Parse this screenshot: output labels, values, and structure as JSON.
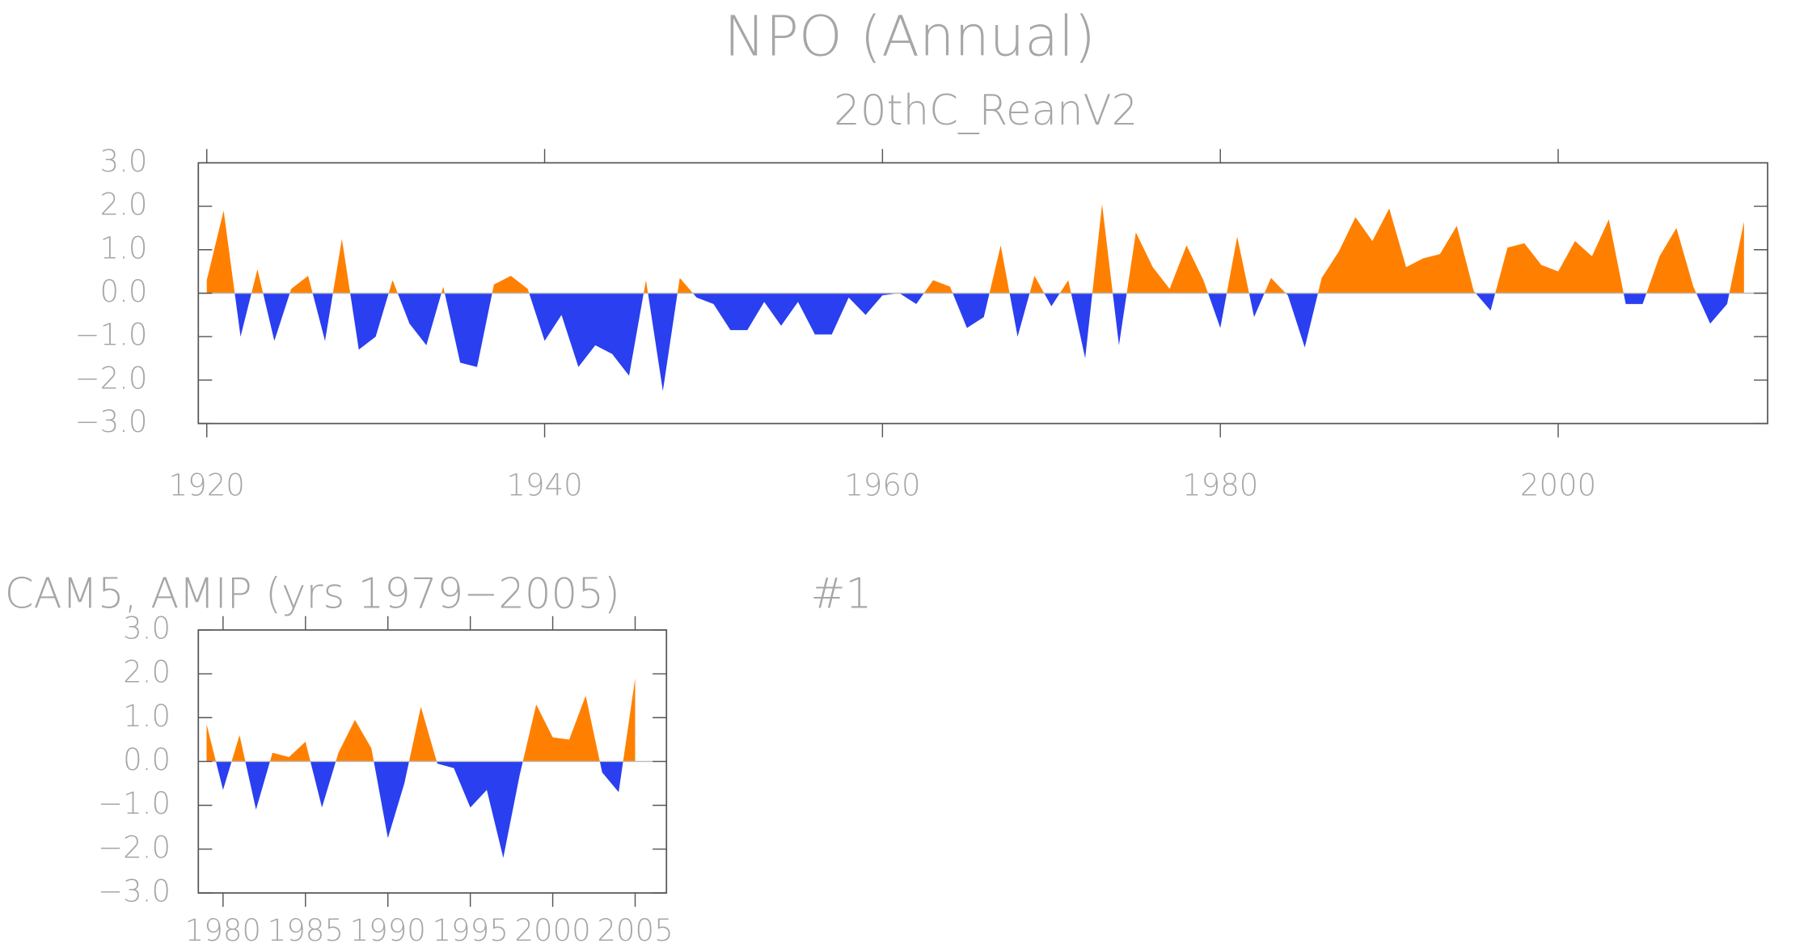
{
  "chart_data": [
    {
      "type": "area",
      "title": "NPO (Annual)",
      "subtitle": "20thC_ReanV2",
      "x": [
        1920,
        1921,
        1922,
        1923,
        1924,
        1925,
        1926,
        1927,
        1928,
        1929,
        1930,
        1931,
        1932,
        1933,
        1934,
        1935,
        1936,
        1937,
        1938,
        1939,
        1940,
        1941,
        1942,
        1943,
        1944,
        1945,
        1946,
        1947,
        1948,
        1949,
        1950,
        1951,
        1952,
        1953,
        1954,
        1955,
        1956,
        1957,
        1958,
        1959,
        1960,
        1961,
        1962,
        1963,
        1964,
        1965,
        1966,
        1967,
        1968,
        1969,
        1970,
        1971,
        1972,
        1973,
        1974,
        1975,
        1976,
        1977,
        1978,
        1979,
        1980,
        1981,
        1982,
        1983,
        1984,
        1985,
        1986,
        1987,
        1988,
        1989,
        1990,
        1991,
        1992,
        1993,
        1994,
        1995,
        1996,
        1997,
        1998,
        1999,
        2000,
        2001,
        2002,
        2003,
        2004,
        2005,
        2006,
        2007,
        2008,
        2009,
        2010,
        2011
      ],
      "values": [
        0.3,
        1.9,
        -1.0,
        0.55,
        -1.1,
        0.1,
        0.4,
        -1.1,
        1.25,
        -1.3,
        -1.0,
        0.3,
        -0.7,
        -1.2,
        0.15,
        -1.6,
        -1.7,
        0.2,
        0.4,
        0.1,
        -1.1,
        -0.5,
        -1.7,
        -1.2,
        -1.4,
        -1.9,
        0.3,
        -2.25,
        0.35,
        -0.1,
        -0.25,
        -0.85,
        -0.85,
        -0.2,
        -0.75,
        -0.2,
        -0.95,
        -0.95,
        -0.1,
        -0.5,
        -0.05,
        0.0,
        -0.25,
        0.3,
        0.15,
        -0.8,
        -0.55,
        1.1,
        -1.0,
        0.4,
        -0.3,
        0.3,
        -1.5,
        2.05,
        -1.2,
        1.4,
        0.6,
        0.1,
        1.1,
        0.3,
        -0.8,
        1.3,
        -0.55,
        0.35,
        -0.05,
        -1.25,
        0.35,
        0.95,
        1.75,
        1.2,
        1.95,
        0.6,
        0.8,
        0.9,
        1.55,
        0.05,
        -0.4,
        1.05,
        1.15,
        0.65,
        0.5,
        1.2,
        0.85,
        1.7,
        -0.25,
        -0.25,
        0.85,
        1.5,
        0.15,
        -0.7,
        -0.25,
        1.65
      ],
      "pos_color": "#ff8000",
      "neg_color": "#2a3ff0",
      "xlim": [
        1919.5,
        2012.4
      ],
      "ylim": [
        -3,
        3
      ],
      "xticks": [
        1920,
        1940,
        1960,
        1980,
        2000
      ],
      "yticks": [
        {
          "value": 3,
          "label": "3.0"
        },
        {
          "value": 2,
          "label": "2.0"
        },
        {
          "value": 1,
          "label": "1.0"
        },
        {
          "value": 0,
          "label": "0.0"
        },
        {
          "value": -1,
          "label": "−1.0"
        },
        {
          "value": -2,
          "label": "−2.0"
        },
        {
          "value": -3,
          "label": "−3.0"
        }
      ]
    },
    {
      "type": "area",
      "title": "CAM5, AMIP (yrs 1979−2005)",
      "annotation": "#1",
      "x": [
        1979,
        1980,
        1981,
        1982,
        1983,
        1984,
        1985,
        1986,
        1987,
        1988,
        1989,
        1990,
        1991,
        1992,
        1993,
        1994,
        1995,
        1996,
        1997,
        1998,
        1999,
        2000,
        2001,
        2002,
        2003,
        2004,
        2005
      ],
      "values": [
        0.85,
        -0.65,
        0.6,
        -1.1,
        0.2,
        0.1,
        0.45,
        -1.05,
        0.2,
        0.95,
        0.3,
        -1.75,
        -0.5,
        1.25,
        -0.05,
        -0.15,
        -1.05,
        -0.65,
        -2.2,
        -0.3,
        1.3,
        0.55,
        0.5,
        1.5,
        -0.25,
        -0.7,
        1.9
      ],
      "pos_color": "#ff8000",
      "neg_color": "#2a3ff0",
      "xlim": [
        1978.5,
        2006.9
      ],
      "ylim": [
        -3,
        3
      ],
      "xticks": [
        1980,
        1985,
        1990,
        1995,
        2000,
        2005
      ],
      "yticks": [
        {
          "value": 3,
          "label": "3.0"
        },
        {
          "value": 2,
          "label": "2.0"
        },
        {
          "value": 1,
          "label": "1.0"
        },
        {
          "value": 0,
          "label": "0.0"
        },
        {
          "value": -1,
          "label": "−1.0"
        },
        {
          "value": -2,
          "label": "−2.0"
        },
        {
          "value": -3,
          "label": "−3.0"
        }
      ]
    }
  ]
}
